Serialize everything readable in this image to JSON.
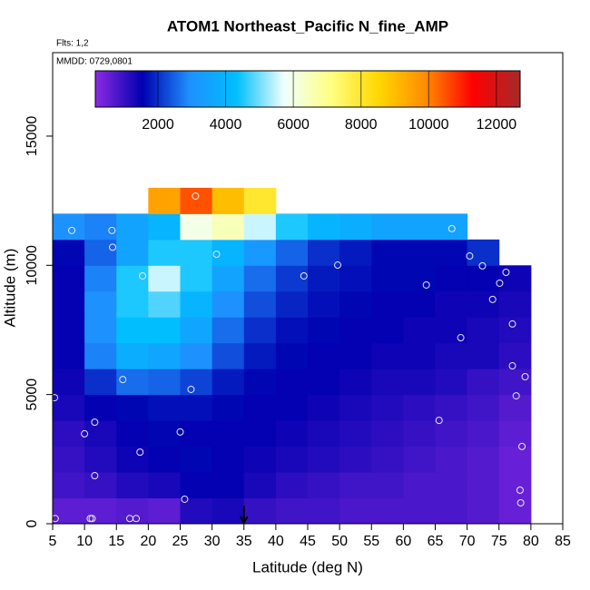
{
  "chart_data": {
    "type": "heatmap",
    "title": "ATOM1 Northeast_Pacific N_fine_AMP",
    "flights_label": "Flts: 1,2",
    "dates_label": "MMDD: 0729,0801",
    "xlabel": "Latitude (deg N)",
    "ylabel": "Altitude (m)",
    "xlim": [
      5,
      85
    ],
    "xticks": [
      5,
      10,
      15,
      20,
      25,
      30,
      35,
      40,
      45,
      50,
      55,
      60,
      65,
      70,
      75,
      80,
      85
    ],
    "ylim": [
      0,
      18230
    ],
    "yticks": [
      0,
      5000,
      10000,
      15000
    ],
    "lat_edges": [
      5,
      10,
      15,
      20,
      25,
      30,
      35,
      40,
      45,
      50,
      55,
      60,
      65,
      70,
      75,
      80
    ],
    "alt_edges": [
      0,
      1000,
      2000,
      3000,
      4000,
      5000,
      6000,
      7000,
      8000,
      9000,
      10000,
      11000,
      12000,
      13000
    ],
    "values": [
      [
        600,
        600,
        700,
        600,
        1200,
        1300,
        1000,
        900,
        900,
        800,
        800,
        800,
        800,
        700,
        500
      ],
      [
        900,
        1000,
        1200,
        1300,
        1500,
        1500,
        1300,
        1100,
        1000,
        900,
        900,
        800,
        800,
        700,
        500
      ],
      [
        1000,
        1200,
        1400,
        1500,
        1600,
        1500,
        1400,
        1300,
        1200,
        1100,
        1000,
        900,
        800,
        700,
        500
      ],
      [
        1100,
        1300,
        1500,
        1600,
        1500,
        1500,
        1500,
        1400,
        1300,
        1200,
        1100,
        1000,
        900,
        800,
        600
      ],
      [
        1300,
        1500,
        1600,
        1700,
        1700,
        1600,
        1500,
        1500,
        1400,
        1300,
        1200,
        1100,
        1000,
        900,
        700
      ],
      [
        1400,
        2000,
        2600,
        2500,
        2200,
        1800,
        1600,
        1500,
        1500,
        1400,
        1300,
        1300,
        1200,
        1000,
        900
      ],
      [
        1500,
        2800,
        3800,
        3600,
        3000,
        2300,
        1800,
        1600,
        1500,
        1500,
        1400,
        1400,
        1300,
        1300,
        1100
      ],
      [
        1500,
        3000,
        4300,
        4300,
        3600,
        2600,
        2000,
        1700,
        1600,
        1500,
        1500,
        1400,
        1400,
        1300,
        1200
      ],
      [
        1500,
        3000,
        4500,
        4800,
        4000,
        3000,
        2300,
        1900,
        1700,
        1600,
        1500,
        1500,
        1400,
        1400,
        1300
      ],
      [
        1500,
        2800,
        4500,
        5500,
        4500,
        3500,
        2600,
        2100,
        1800,
        1700,
        1600,
        1600,
        1500,
        1500,
        1400
      ],
      [
        1600,
        2500,
        3500,
        4500,
        4500,
        4000,
        3200,
        2500,
        2000,
        1800,
        1600,
        1600,
        1600,
        2000,
        null
      ],
      [
        3000,
        2800,
        3500,
        4000,
        6000,
        6500,
        5500,
        4500,
        4000,
        3800,
        3500,
        3500,
        3500,
        null,
        null
      ],
      [
        null,
        null,
        null,
        9500,
        10500,
        9000,
        8000,
        null,
        null,
        null,
        null,
        null,
        null,
        null,
        null
      ]
    ],
    "zlim": [
      150,
      12700
    ],
    "zticks": [
      2000,
      4000,
      6000,
      8000,
      10000,
      12000
    ],
    "colors": [
      "#8a2be2",
      "#0000b0",
      "#1e90ff",
      "#00bfff",
      "#f0ffff",
      "#ffff80",
      "#ffd700",
      "#ff8c00",
      "#ff0000",
      "#a52a2a"
    ],
    "obs_lat": [
      5.4,
      5.3,
      8,
      14.3,
      14.4,
      19.1,
      30.7,
      44.4,
      49.7,
      63.6,
      67.6,
      70.4,
      72.4,
      75.1,
      74,
      76.1,
      77.1,
      69,
      77.1,
      79.1,
      77.7,
      78.6,
      78.3,
      78.4,
      65.6,
      26.7,
      16,
      11.6,
      10,
      25,
      18.7,
      11.6,
      25.7,
      10.9,
      11.2,
      17.1,
      18.1,
      27.4
    ],
    "obs_alt": [
      200,
      4880,
      11350,
      11350,
      10700,
      9590,
      10430,
      9590,
      10010,
      9240,
      11420,
      10360,
      9980,
      9310,
      8680,
      9730,
      7730,
      7200,
      6110,
      5690,
      4950,
      2990,
      1300,
      810,
      4000,
      5200,
      5580,
      3930,
      3480,
      3550,
      2770,
      1860,
      950,
      200,
      200,
      200,
      200,
      12680
    ],
    "marker_lat": 35
  }
}
